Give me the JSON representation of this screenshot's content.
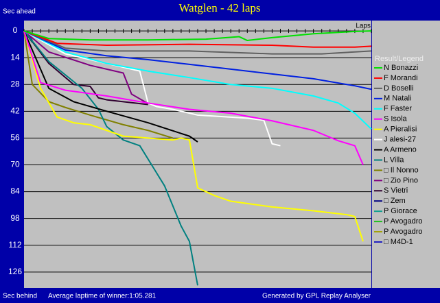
{
  "chart_data": {
    "type": "line",
    "title": "Watglen - 42 laps",
    "y_label_top": "Sec ahead",
    "y_label_bottom": "Sec behind",
    "x_label": "Laps",
    "footer_left": "Average laptime of winner:1:05.281",
    "footer_right": "Generated by GPL Replay Analyser",
    "legend_title": "Result/Legend",
    "xlim": [
      0,
      42
    ],
    "xticks": [
      0,
      1,
      2,
      3,
      4,
      5,
      6,
      7,
      8,
      9,
      10,
      11,
      12,
      13,
      14,
      15,
      16,
      17,
      18,
      19,
      20,
      21,
      22,
      23,
      24,
      25,
      26,
      27,
      28,
      29,
      30,
      31,
      32,
      33,
      34,
      35,
      36,
      37,
      38,
      39,
      40,
      41,
      42
    ],
    "ylim": [
      -5.4,
      134.3
    ],
    "y_inverted": true,
    "yticks": [
      0,
      14,
      28,
      42,
      56,
      70,
      84,
      98,
      112,
      126
    ],
    "grid": true,
    "legend_position": "right",
    "series": [
      {
        "name": "N Bonazzi",
        "color": "#00e000",
        "x": [
          0,
          3,
          8,
          15,
          22,
          26,
          27,
          30,
          35,
          40,
          42
        ],
        "values": [
          0,
          4,
          4.7,
          4.7,
          4.3,
          3,
          5,
          3.5,
          1.5,
          0.3,
          0
        ]
      },
      {
        "name": "F Morandi",
        "color": "#ff0000",
        "x": [
          0,
          4,
          10,
          20,
          30,
          35,
          40,
          42
        ],
        "values": [
          0,
          6.5,
          7.5,
          7,
          7.5,
          8.5,
          8.5,
          8
        ]
      },
      {
        "name": "D Boselli",
        "color": "#606060",
        "x": [
          0,
          5,
          10,
          20,
          30,
          36,
          40,
          42
        ],
        "values": [
          0,
          9,
          10.5,
          10.5,
          12,
          12,
          11,
          10.5
        ]
      },
      {
        "name": "M Natali",
        "color": "#0020e0",
        "x": [
          0,
          5,
          10,
          15,
          20,
          25,
          30,
          35,
          40,
          42
        ],
        "values": [
          0,
          10,
          13,
          15,
          17.5,
          20,
          22.5,
          25,
          28.7,
          30.5
        ]
      },
      {
        "name": "F Faster",
        "color": "#00ffff",
        "x": [
          0,
          5,
          10,
          15,
          20,
          25,
          30,
          35,
          38,
          40,
          42
        ],
        "values": [
          0,
          11,
          17,
          21,
          24.4,
          28,
          30,
          34,
          37.7,
          43,
          51.3
        ]
      },
      {
        "name": "S Isola",
        "color": "#ff00ff",
        "x": [
          0,
          2,
          5,
          10,
          15,
          20,
          25,
          30,
          35,
          38,
          40,
          41
        ],
        "values": [
          0,
          27,
          31,
          34,
          37.7,
          41,
          43,
          47,
          52,
          57.4,
          60,
          70
        ]
      },
      {
        "name": "A Pieralisi",
        "color": "#ffff00",
        "x": [
          0,
          2,
          4,
          6,
          8,
          10,
          12,
          15,
          18,
          19,
          20,
          21,
          23,
          25,
          30,
          35,
          39,
          40,
          41
        ],
        "values": [
          0,
          30,
          45,
          48,
          49,
          52,
          55,
          56,
          57,
          56,
          57,
          82,
          86,
          89,
          92,
          94,
          96,
          97,
          110
        ]
      },
      {
        "name": "J alesi-27",
        "color": "#ffffff",
        "x": [
          0,
          5,
          10,
          14,
          15,
          16,
          18,
          21,
          27,
          29,
          30,
          31
        ],
        "values": [
          0,
          12,
          17,
          21,
          37.7,
          39.5,
          41,
          44,
          45.6,
          46.7,
          59,
          60
        ]
      },
      {
        "name": "A Armeno",
        "color": "#000000",
        "x": [
          0,
          3,
          6,
          10,
          15,
          20,
          21
        ],
        "values": [
          0,
          30,
          37,
          42,
          48,
          55,
          58
        ]
      },
      {
        "name": "L Villa",
        "color": "#008080",
        "x": [
          0,
          3,
          5,
          7,
          9,
          10,
          12,
          14,
          16,
          17,
          19,
          20,
          21
        ],
        "values": [
          0,
          16,
          23,
          30,
          41,
          50,
          57,
          60,
          74,
          81,
          102,
          110,
          133
        ]
      },
      {
        "name": "□ Il Nonno",
        "color": "#808000",
        "x": [
          0,
          1,
          3,
          5,
          8,
          12,
          15,
          18
        ],
        "values": [
          0,
          28,
          37,
          40,
          44,
          49,
          52,
          56
        ]
      },
      {
        "name": "□ Zio Pino",
        "color": "#800080",
        "x": [
          0,
          3,
          8,
          12,
          13,
          15
        ],
        "values": [
          0,
          11,
          18,
          22,
          33,
          38
        ]
      },
      {
        "name": "S Vietri",
        "color": "#300030",
        "x": [
          0,
          3,
          6,
          8,
          9,
          10,
          15
        ],
        "values": [
          0,
          17,
          28,
          29,
          35,
          36,
          38.5
        ]
      },
      {
        "name": "□ Zem",
        "color": "#000080",
        "x": [
          0,
          1
        ],
        "values": [
          0,
          5
        ]
      },
      {
        "name": "P Giorace",
        "color": "#10a090",
        "x": [
          0,
          1
        ],
        "values": [
          0,
          6
        ]
      },
      {
        "name": "P Avogadro",
        "color": "#20c020",
        "x": [
          0,
          1
        ],
        "values": [
          0,
          5
        ]
      },
      {
        "name": "P Avogadro",
        "color": "#a0a000",
        "x": [
          0,
          1
        ],
        "values": [
          0,
          6
        ]
      },
      {
        "name": "□ M4D-1",
        "color": "#2020c0",
        "x": [
          0,
          1
        ],
        "values": [
          0,
          5
        ]
      }
    ]
  }
}
